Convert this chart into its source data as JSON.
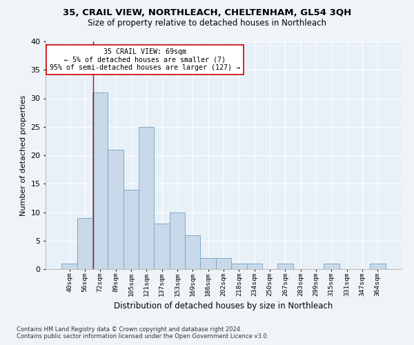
{
  "title": "35, CRAIL VIEW, NORTHLEACH, CHELTENHAM, GL54 3QH",
  "subtitle": "Size of property relative to detached houses in Northleach",
  "xlabel": "Distribution of detached houses by size in Northleach",
  "ylabel": "Number of detached properties",
  "bar_values": [
    1,
    9,
    31,
    21,
    14,
    25,
    8,
    10,
    6,
    2,
    2,
    1,
    1,
    0,
    1,
    0,
    0,
    1,
    0,
    0,
    1
  ],
  "bin_labels": [
    "40sqm",
    "56sqm",
    "72sqm",
    "89sqm",
    "105sqm",
    "121sqm",
    "137sqm",
    "153sqm",
    "169sqm",
    "186sqm",
    "202sqm",
    "218sqm",
    "234sqm",
    "250sqm",
    "267sqm",
    "283sqm",
    "299sqm",
    "315sqm",
    "331sqm",
    "347sqm",
    "364sqm"
  ],
  "bar_color": "#c9d9ea",
  "bar_edge_color": "#7aaac8",
  "bg_color": "#e8f0f8",
  "grid_color": "#ffffff",
  "red_line_x": 1.52,
  "annotation_text": "35 CRAIL VIEW: 69sqm\n← 5% of detached houses are smaller (7)\n95% of semi-detached houses are larger (127) →",
  "annotation_box_color": "#ffffff",
  "annotation_box_edge": "#cc0000",
  "footnote1": "Contains HM Land Registry data © Crown copyright and database right 2024.",
  "footnote2": "Contains public sector information licensed under the Open Government Licence v3.0.",
  "ylim": [
    0,
    40
  ],
  "yticks": [
    0,
    5,
    10,
    15,
    20,
    25,
    30,
    35,
    40
  ]
}
